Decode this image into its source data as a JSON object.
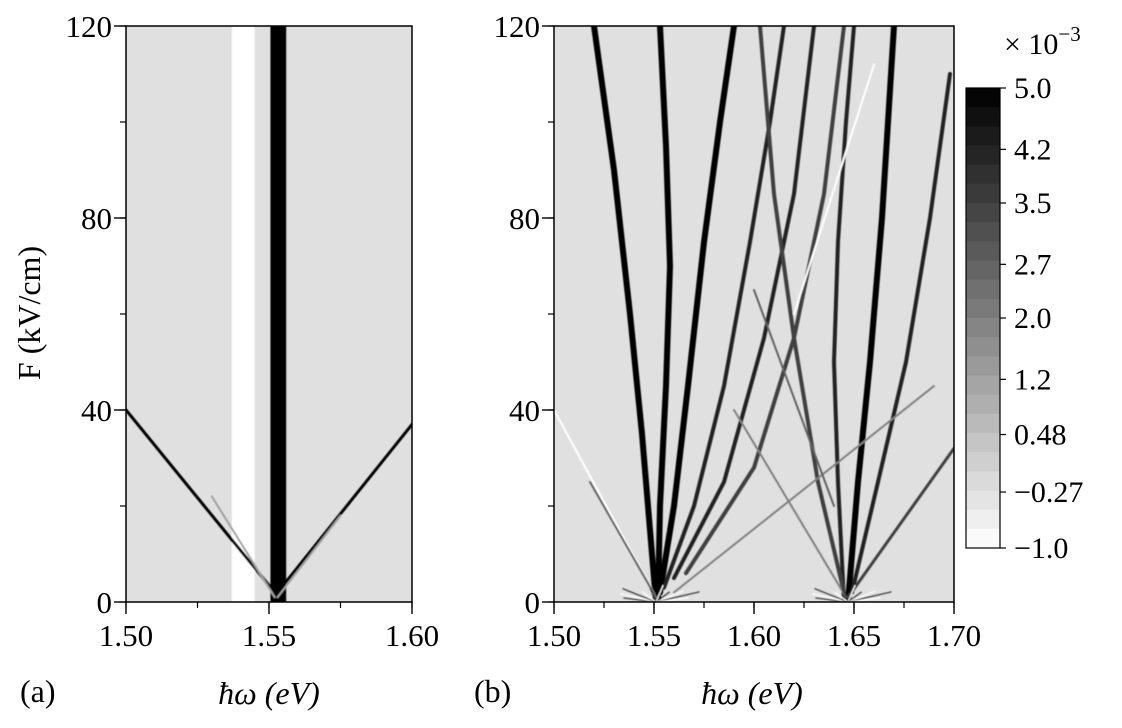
{
  "chart_data": [
    {
      "type": "heatmap",
      "panel_label": "(a)",
      "xlabel": "ħω (eV)",
      "ylabel": "F (kV/cm)",
      "xlim": [
        1.5,
        1.6
      ],
      "ylim": [
        0,
        120
      ],
      "x_ticks": [
        "1.50",
        "1.55",
        "1.60"
      ],
      "x_tick_values": [
        1.5,
        1.55,
        1.6
      ],
      "y_ticks": [
        "0",
        "40",
        "80",
        "120"
      ],
      "y_tick_values": [
        0,
        40,
        80,
        120
      ],
      "background_value": -0.27,
      "features": [
        {
          "kind": "band",
          "x_range": [
            1.537,
            1.545
          ],
          "y_range": [
            0,
            120
          ],
          "value": -1.0
        },
        {
          "kind": "band",
          "x_range": [
            1.5505,
            1.556
          ],
          "y_range": [
            0,
            120
          ],
          "value": 5.0
        },
        {
          "kind": "line",
          "from": [
            1.552,
            2
          ],
          "to": [
            1.5,
            40
          ],
          "value": 5.0
        },
        {
          "kind": "line",
          "from": [
            1.553,
            2
          ],
          "to": [
            1.6,
            37
          ],
          "value": 5.0
        },
        {
          "kind": "line",
          "from": [
            1.552,
            1
          ],
          "to": [
            1.53,
            22
          ],
          "value": 1.2
        },
        {
          "kind": "line",
          "from": [
            1.553,
            1
          ],
          "to": [
            1.575,
            18
          ],
          "value": 1.2
        }
      ]
    },
    {
      "type": "heatmap",
      "panel_label": "(b)",
      "xlabel": "ħω (eV)",
      "ylabel": "",
      "xlim": [
        1.5,
        1.7
      ],
      "ylim": [
        0,
        120
      ],
      "x_ticks": [
        "1.50",
        "1.55",
        "1.60",
        "1.65",
        "1.70"
      ],
      "x_tick_values": [
        1.5,
        1.55,
        1.6,
        1.65,
        1.7
      ],
      "y_ticks": [
        "0",
        "40",
        "80",
        "120"
      ],
      "y_tick_values": [
        0,
        40,
        80,
        120
      ],
      "background_value": -0.27,
      "fan_origins": [
        {
          "x": 1.551,
          "y": 0
        },
        {
          "x": 1.647,
          "y": 0
        }
      ],
      "features": [
        {
          "kind": "curve",
          "points": [
            [
              1.551,
              0
            ],
            [
              1.548,
              15
            ],
            [
              1.544,
              35
            ],
            [
              1.538,
              60
            ],
            [
              1.53,
              90
            ],
            [
              1.52,
              120
            ]
          ],
          "value": 5.0
        },
        {
          "kind": "curve",
          "points": [
            [
              1.552,
              0
            ],
            [
              1.553,
              20
            ],
            [
              1.556,
              45
            ],
            [
              1.558,
              70
            ],
            [
              1.556,
              95
            ],
            [
              1.553,
              120
            ]
          ],
          "value": 5.0
        },
        {
          "kind": "curve",
          "points": [
            [
              1.553,
              2
            ],
            [
              1.56,
              20
            ],
            [
              1.567,
              45
            ],
            [
              1.575,
              75
            ],
            [
              1.583,
              100
            ],
            [
              1.59,
              120
            ]
          ],
          "value": 5.0
        },
        {
          "kind": "curve",
          "points": [
            [
              1.555,
              3
            ],
            [
              1.57,
              20
            ],
            [
              1.585,
              45
            ],
            [
              1.598,
              75
            ],
            [
              1.608,
              100
            ],
            [
              1.615,
              120
            ]
          ],
          "value": 4.2
        },
        {
          "kind": "curve",
          "points": [
            [
              1.56,
              5
            ],
            [
              1.585,
              25
            ],
            [
              1.605,
              55
            ],
            [
              1.62,
              85
            ],
            [
              1.63,
              120
            ]
          ],
          "value": 4.2
        },
        {
          "kind": "curve",
          "points": [
            [
              1.566,
              6
            ],
            [
              1.6,
              28
            ],
            [
              1.62,
              55
            ],
            [
              1.635,
              85
            ],
            [
              1.645,
              120
            ]
          ],
          "value": 3.5
        },
        {
          "kind": "line",
          "from": [
            1.551,
            1
          ],
          "to": [
            1.5,
            40
          ],
          "value": -1.0
        },
        {
          "kind": "line",
          "from": [
            1.551,
            1
          ],
          "to": [
            1.518,
            25
          ],
          "value": 2.7
        },
        {
          "kind": "curve",
          "points": [
            [
              1.645,
              0
            ],
            [
              1.642,
              25
            ],
            [
              1.64,
              50
            ],
            [
              1.642,
              75
            ],
            [
              1.646,
              100
            ],
            [
              1.65,
              120
            ]
          ],
          "value": 4.2
        },
        {
          "kind": "curve",
          "points": [
            [
              1.647,
              0
            ],
            [
              1.652,
              25
            ],
            [
              1.658,
              50
            ],
            [
              1.664,
              80
            ],
            [
              1.67,
              120
            ]
          ],
          "value": 5.0
        },
        {
          "kind": "curve",
          "points": [
            [
              1.649,
              2
            ],
            [
              1.662,
              25
            ],
            [
              1.676,
              50
            ],
            [
              1.688,
              80
            ],
            [
              1.698,
              110
            ]
          ],
          "value": 4.2
        },
        {
          "kind": "curve",
          "points": [
            [
              1.645,
              2
            ],
            [
              1.632,
              25
            ],
            [
              1.62,
              55
            ],
            [
              1.61,
              85
            ],
            [
              1.603,
              120
            ]
          ],
          "value": 3.5
        },
        {
          "kind": "line",
          "from": [
            1.647,
            1
          ],
          "to": [
            1.7,
            32
          ],
          "value": 3.5
        },
        {
          "kind": "line",
          "from": [
            1.646,
            1
          ],
          "to": [
            1.59,
            40
          ],
          "value": 2.0
        },
        {
          "kind": "line",
          "from": [
            1.56,
            2
          ],
          "to": [
            1.69,
            45
          ],
          "value": 2.0
        },
        {
          "kind": "line",
          "from": [
            1.62,
            60
          ],
          "to": [
            1.66,
            112
          ],
          "value": -1.0
        },
        {
          "kind": "line",
          "from": [
            1.6,
            65
          ],
          "to": [
            1.64,
            20
          ],
          "value": 2.7
        }
      ]
    }
  ],
  "colorbar": {
    "multiplier": "× 10",
    "exponent": "−3",
    "tick_labels": [
      "5.0",
      "4.2",
      "3.5",
      "2.7",
      "2.0",
      "1.2",
      "0.48",
      "−0.27",
      "−1.0"
    ],
    "tick_values": [
      5.0,
      4.2,
      3.5,
      2.7,
      2.0,
      1.2,
      0.48,
      -0.27,
      -1.0
    ],
    "range": [
      -1.0,
      5.0
    ],
    "low_color": "#ffffff",
    "high_color": "#000000",
    "levels": 24
  }
}
